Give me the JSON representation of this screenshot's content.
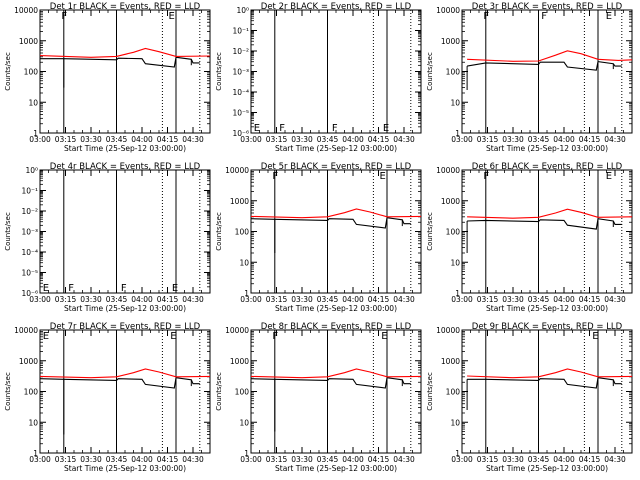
{
  "figure": {
    "xlabel": "Start Time (25-Sep-12 03:00:00)",
    "ylabel": "Counts/sec",
    "x_tick_labels": [
      "03:00",
      "03:15",
      "03:30",
      "03:45",
      "04:00",
      "04:15",
      "04:30"
    ],
    "colors": {
      "events": "#000000",
      "lld": "#ff0000",
      "axes": "#000000",
      "background": "#ffffff"
    }
  },
  "chart_data": [
    {
      "type": "line",
      "title": "Det 1r BLACK = Events, RED = LLD",
      "scale": "log",
      "ylim": [
        1,
        10000
      ],
      "y_tick_labels": [
        "1",
        "10",
        "100",
        "1000",
        "10000"
      ],
      "x_range_min": [
        0,
        100
      ],
      "solid_vlines_min": [
        14,
        45,
        80
      ],
      "dotted_vlines_min": [
        72,
        94
      ],
      "markers": [
        {
          "t": 12,
          "label": "F"
        },
        {
          "t": 75,
          "label": "E"
        }
      ],
      "series": [
        {
          "color": "#000000",
          "style": "events",
          "points": [
            [
              0,
              260
            ],
            [
              14,
              260
            ],
            [
              45,
              240
            ],
            [
              46,
              270
            ],
            [
              60,
              260
            ],
            [
              62,
              180
            ],
            [
              79,
              140
            ],
            [
              80,
              290
            ],
            [
              89,
              250
            ],
            [
              90,
              190
            ],
            [
              94,
              190
            ]
          ]
        },
        {
          "color": "#ff0000",
          "style": "lld",
          "points": [
            [
              0,
              330
            ],
            [
              30,
              290
            ],
            [
              45,
              310
            ],
            [
              55,
              420
            ],
            [
              62,
              560
            ],
            [
              70,
              440
            ],
            [
              80,
              310
            ],
            [
              100,
              320
            ]
          ]
        }
      ],
      "dip_markers": [
        {
          "t": 14,
          "low": 30,
          "high": 260
        },
        {
          "t": 89,
          "low": 160,
          "high": 250
        }
      ]
    },
    {
      "type": "line",
      "title": "Det 2r BLACK = Events, RED = LLD",
      "scale": "log",
      "ylim": [
        1e-06,
        1
      ],
      "y_tick_labels": [
        "10⁻⁶",
        "10⁻⁵",
        "10⁻⁴",
        "10⁻³",
        "10⁻²",
        "10⁻¹",
        "10⁰"
      ],
      "x_range_min": [
        0,
        100
      ],
      "solid_vlines_min": [
        14,
        45,
        80
      ],
      "dotted_vlines_min": [
        72,
        94
      ],
      "markers": [
        {
          "t": 1,
          "label": "E"
        },
        {
          "t": 16,
          "label": "F"
        },
        {
          "t": 47,
          "label": "F"
        },
        {
          "t": 77,
          "label": "E"
        }
      ],
      "series": [],
      "dip_markers": []
    },
    {
      "type": "line",
      "title": "Det 3r BLACK = Events, RED = LLD",
      "scale": "log",
      "ylim": [
        1,
        10000
      ],
      "y_tick_labels": [
        "1",
        "10",
        "100",
        "1000",
        "10000"
      ],
      "x_range_min": [
        0,
        100
      ],
      "solid_vlines_min": [
        14,
        45,
        80
      ],
      "dotted_vlines_min": [
        72,
        94
      ],
      "markers": [
        {
          "t": 12,
          "label": "F"
        },
        {
          "t": 46,
          "label": "F"
        },
        {
          "t": 84,
          "label": "E"
        }
      ],
      "series": [
        {
          "color": "#000000",
          "style": "events",
          "points": [
            [
              3,
              150
            ],
            [
              14,
              190
            ],
            [
              45,
              170
            ],
            [
              46,
              200
            ],
            [
              60,
              200
            ],
            [
              62,
              140
            ],
            [
              79,
              110
            ],
            [
              80,
              210
            ],
            [
              89,
              180
            ],
            [
              90,
              150
            ],
            [
              94,
              150
            ]
          ]
        },
        {
          "color": "#ff0000",
          "style": "lld",
          "points": [
            [
              3,
              250
            ],
            [
              30,
              215
            ],
            [
              45,
              220
            ],
            [
              55,
              340
            ],
            [
              62,
              470
            ],
            [
              70,
              380
            ],
            [
              80,
              250
            ],
            [
              92,
              230
            ],
            [
              100,
              240
            ]
          ]
        }
      ],
      "dip_markers": [
        {
          "t": 3,
          "low": 25,
          "high": 150
        },
        {
          "t": 89,
          "low": 120,
          "high": 180
        }
      ]
    },
    {
      "type": "line",
      "title": "Det 4r BLACK = Events, RED = LLD",
      "scale": "log",
      "ylim": [
        1e-06,
        1
      ],
      "y_tick_labels": [
        "10⁻⁶",
        "10⁻⁵",
        "10⁻⁴",
        "10⁻³",
        "10⁻²",
        "10⁻¹",
        "10⁰"
      ],
      "x_range_min": [
        0,
        100
      ],
      "solid_vlines_min": [
        14,
        45,
        80
      ],
      "dotted_vlines_min": [
        72,
        94
      ],
      "markers": [
        {
          "t": 1,
          "label": "E"
        },
        {
          "t": 16,
          "label": "F"
        },
        {
          "t": 47,
          "label": "F"
        },
        {
          "t": 77,
          "label": "E"
        }
      ],
      "series": [],
      "dip_markers": []
    },
    {
      "type": "line",
      "title": "Det 5r BLACK = Events, RED = LLD",
      "scale": "log",
      "ylim": [
        1,
        10000
      ],
      "y_tick_labels": [
        "1",
        "10",
        "100",
        "1000",
        "10000"
      ],
      "x_range_min": [
        0,
        100
      ],
      "solid_vlines_min": [
        14,
        45,
        80
      ],
      "dotted_vlines_min": [
        72,
        94
      ],
      "markers": [
        {
          "t": 12,
          "label": "F"
        },
        {
          "t": 75,
          "label": "E"
        }
      ],
      "series": [
        {
          "color": "#000000",
          "style": "events",
          "points": [
            [
              0,
              260
            ],
            [
              14,
              250
            ],
            [
              45,
              230
            ],
            [
              46,
              260
            ],
            [
              60,
              250
            ],
            [
              62,
              170
            ],
            [
              79,
              130
            ],
            [
              80,
              280
            ],
            [
              89,
              240
            ],
            [
              90,
              180
            ],
            [
              94,
              180
            ]
          ]
        },
        {
          "color": "#ff0000",
          "style": "lld",
          "points": [
            [
              0,
              310
            ],
            [
              30,
              280
            ],
            [
              45,
              300
            ],
            [
              55,
              410
            ],
            [
              62,
              540
            ],
            [
              70,
              430
            ],
            [
              80,
              300
            ],
            [
              100,
              310
            ]
          ]
        }
      ],
      "dip_markers": [
        {
          "t": 14,
          "low": 20,
          "high": 250
        },
        {
          "t": 89,
          "low": 150,
          "high": 240
        }
      ]
    },
    {
      "type": "line",
      "title": "Det 6r BLACK = Events, RED = LLD",
      "scale": "log",
      "ylim": [
        1,
        10000
      ],
      "y_tick_labels": [
        "1",
        "10",
        "100",
        "1000",
        "10000"
      ],
      "x_range_min": [
        0,
        100
      ],
      "solid_vlines_min": [
        14,
        45,
        80
      ],
      "dotted_vlines_min": [
        72,
        94
      ],
      "markers": [
        {
          "t": 12,
          "label": "F"
        },
        {
          "t": 84,
          "label": "E"
        }
      ],
      "series": [
        {
          "color": "#000000",
          "style": "events",
          "points": [
            [
              3,
              220
            ],
            [
              14,
              230
            ],
            [
              45,
              210
            ],
            [
              46,
              240
            ],
            [
              60,
              230
            ],
            [
              62,
              160
            ],
            [
              79,
              120
            ],
            [
              80,
              260
            ],
            [
              89,
              220
            ],
            [
              90,
              170
            ],
            [
              94,
              170
            ]
          ]
        },
        {
          "color": "#ff0000",
          "style": "lld",
          "points": [
            [
              3,
              300
            ],
            [
              30,
              270
            ],
            [
              45,
              290
            ],
            [
              55,
              400
            ],
            [
              62,
              530
            ],
            [
              70,
              420
            ],
            [
              80,
              290
            ],
            [
              100,
              300
            ]
          ]
        }
      ],
      "dip_markers": [
        {
          "t": 3,
          "low": 20,
          "high": 220
        },
        {
          "t": 89,
          "low": 140,
          "high": 220
        }
      ]
    },
    {
      "type": "line",
      "title": "Det 7r BLACK = Events, RED = LLD",
      "scale": "log",
      "ylim": [
        1,
        10000
      ],
      "y_tick_labels": [
        "1",
        "10",
        "100",
        "1000",
        "10000"
      ],
      "x_range_min": [
        0,
        100
      ],
      "solid_vlines_min": [
        14,
        45,
        80
      ],
      "dotted_vlines_min": [
        72,
        94
      ],
      "markers": [
        {
          "t": 1,
          "label": "E"
        },
        {
          "t": 76,
          "label": "E"
        }
      ],
      "series": [
        {
          "color": "#000000",
          "style": "events",
          "points": [
            [
              0,
              260
            ],
            [
              14,
              250
            ],
            [
              45,
              230
            ],
            [
              46,
              260
            ],
            [
              60,
              250
            ],
            [
              62,
              170
            ],
            [
              79,
              130
            ],
            [
              80,
              280
            ],
            [
              89,
              240
            ],
            [
              90,
              180
            ],
            [
              94,
              180
            ]
          ]
        },
        {
          "color": "#ff0000",
          "style": "lld",
          "points": [
            [
              0,
              310
            ],
            [
              30,
              280
            ],
            [
              45,
              300
            ],
            [
              55,
              410
            ],
            [
              62,
              540
            ],
            [
              70,
              430
            ],
            [
              80,
              300
            ],
            [
              100,
              310
            ]
          ]
        }
      ],
      "dip_markers": [
        {
          "t": 14,
          "low": 4,
          "high": 250
        },
        {
          "t": 89,
          "low": 150,
          "high": 240
        }
      ]
    },
    {
      "type": "line",
      "title": "Det 8r BLACK = Events, RED = LLD",
      "scale": "log",
      "ylim": [
        1,
        10000
      ],
      "y_tick_labels": [
        "1",
        "10",
        "100",
        "1000",
        "10000"
      ],
      "x_range_min": [
        0,
        100
      ],
      "solid_vlines_min": [
        14,
        45,
        80
      ],
      "dotted_vlines_min": [
        72,
        94
      ],
      "markers": [
        {
          "t": 12,
          "label": "F"
        },
        {
          "t": 76,
          "label": "E"
        }
      ],
      "series": [
        {
          "color": "#000000",
          "style": "events",
          "points": [
            [
              0,
              260
            ],
            [
              14,
              250
            ],
            [
              45,
              230
            ],
            [
              46,
              260
            ],
            [
              60,
              250
            ],
            [
              62,
              170
            ],
            [
              79,
              130
            ],
            [
              80,
              280
            ],
            [
              89,
              240
            ],
            [
              90,
              180
            ],
            [
              94,
              180
            ]
          ]
        },
        {
          "color": "#ff0000",
          "style": "lld",
          "points": [
            [
              0,
              310
            ],
            [
              30,
              280
            ],
            [
              45,
              300
            ],
            [
              55,
              410
            ],
            [
              62,
              540
            ],
            [
              70,
              430
            ],
            [
              80,
              300
            ],
            [
              100,
              310
            ]
          ]
        }
      ],
      "dip_markers": [
        {
          "t": 14,
          "low": 5,
          "high": 250
        },
        {
          "t": 89,
          "low": 150,
          "high": 240
        }
      ]
    },
    {
      "type": "line",
      "title": "Det 9r BLACK = Events, RED = LLD",
      "scale": "log",
      "ylim": [
        1,
        10000
      ],
      "y_tick_labels": [
        "1",
        "10",
        "100",
        "1000",
        "10000"
      ],
      "x_range_min": [
        0,
        100
      ],
      "solid_vlines_min": [
        14,
        45,
        80
      ],
      "dotted_vlines_min": [
        72,
        94
      ],
      "markers": [
        {
          "t": 76,
          "label": "E"
        }
      ],
      "series": [
        {
          "color": "#000000",
          "style": "events",
          "points": [
            [
              3,
              250
            ],
            [
              14,
              250
            ],
            [
              45,
              230
            ],
            [
              46,
              260
            ],
            [
              60,
              250
            ],
            [
              62,
              170
            ],
            [
              79,
              130
            ],
            [
              80,
              280
            ],
            [
              89,
              240
            ],
            [
              90,
              180
            ],
            [
              94,
              180
            ]
          ]
        },
        {
          "color": "#ff0000",
          "style": "lld",
          "points": [
            [
              3,
              320
            ],
            [
              30,
              280
            ],
            [
              45,
              300
            ],
            [
              55,
              410
            ],
            [
              62,
              540
            ],
            [
              70,
              430
            ],
            [
              80,
              300
            ],
            [
              100,
              310
            ]
          ]
        }
      ],
      "dip_markers": [
        {
          "t": 3,
          "low": 25,
          "high": 250
        },
        {
          "t": 89,
          "low": 150,
          "high": 240
        }
      ]
    }
  ]
}
